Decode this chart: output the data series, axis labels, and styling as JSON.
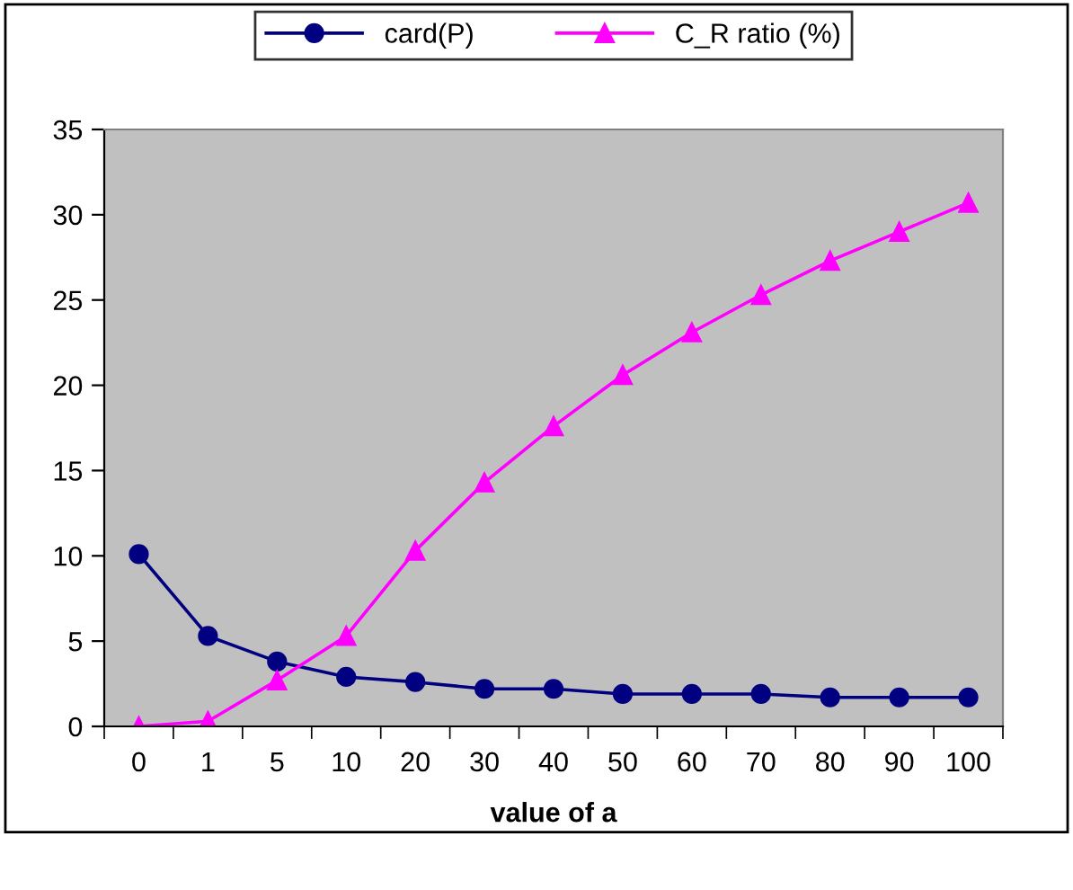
{
  "chart_data": {
    "type": "line",
    "xlabel": "value of a",
    "categories": [
      "0",
      "1",
      "5",
      "10",
      "20",
      "30",
      "40",
      "50",
      "60",
      "70",
      "80",
      "90",
      "100"
    ],
    "series": [
      {
        "name": "card(P)",
        "color": "#000080",
        "marker": "circle",
        "values": [
          10.1,
          5.3,
          3.8,
          2.9,
          2.6,
          2.2,
          2.2,
          1.9,
          1.9,
          1.9,
          1.7,
          1.7,
          1.7
        ]
      },
      {
        "name": "C_R ratio (%)",
        "color": "#ff00ff",
        "marker": "triangle",
        "values": [
          0,
          0.3,
          2.7,
          5.3,
          10.3,
          14.3,
          17.6,
          20.6,
          23.1,
          25.3,
          27.3,
          29.0,
          30.7
        ]
      }
    ],
    "ylim": [
      0,
      35
    ],
    "yticks": [
      0,
      5,
      10,
      15,
      20,
      25,
      30,
      35
    ],
    "grid": false,
    "legend": "top"
  }
}
